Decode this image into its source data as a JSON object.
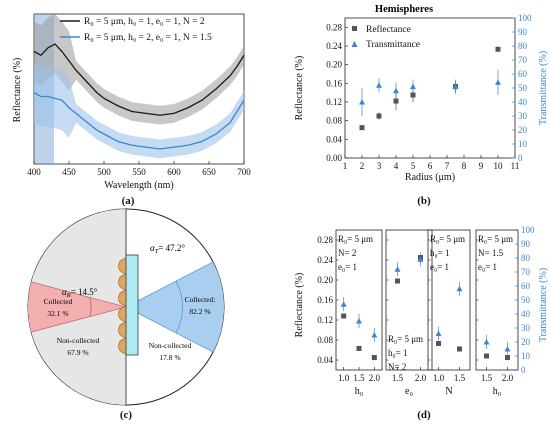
{
  "panels": {
    "a": {
      "caption": "(a)",
      "chart_data": {
        "type": "line",
        "xlabel": "Wavelength (nm)",
        "ylabel": "Reflectance (%)",
        "xlim": [
          400,
          700
        ],
        "xticks": [
          "400",
          "450",
          "500",
          "550",
          "600",
          "650",
          "700"
        ],
        "series": [
          {
            "name": "R₀ = 5 μm, h₀ = 1, e₀ = 1, N = 2",
            "color": "#1a1a1a",
            "x": [
              400,
              410,
              420,
              430,
              440,
              450,
              460,
              470,
              480,
              490,
              500,
              520,
              540,
              560,
              580,
              600,
              620,
              640,
              660,
              680,
              690,
              700
            ],
            "y": [
              0.6,
              0.58,
              0.62,
              0.64,
              0.6,
              0.55,
              0.5,
              0.46,
              0.42,
              0.38,
              0.35,
              0.31,
              0.28,
              0.27,
              0.26,
              0.27,
              0.3,
              0.34,
              0.4,
              0.47,
              0.52,
              0.58
            ]
          },
          {
            "name": "R₀ = 5 μm, h₀ = 2, e₀ = 1, N = 1.5",
            "color": "#3a86d1",
            "x": [
              400,
              410,
              420,
              430,
              440,
              450,
              460,
              470,
              480,
              490,
              500,
              520,
              540,
              560,
              580,
              600,
              620,
              640,
              660,
              680,
              690,
              700
            ],
            "y": [
              0.38,
              0.36,
              0.36,
              0.35,
              0.34,
              0.3,
              0.27,
              0.24,
              0.21,
              0.18,
              0.16,
              0.12,
              0.1,
              0.09,
              0.08,
              0.09,
              0.1,
              0.12,
              0.16,
              0.22,
              0.28,
              0.34
            ]
          }
        ]
      }
    },
    "b": {
      "caption": "(b)",
      "chart_data": {
        "type": "scatter",
        "title": "Hemispheres",
        "xlabel": "Radius (μm)",
        "ylabel": "Reflectance (%)",
        "ylabel2": "Transmittance (%)",
        "xlim": [
          1,
          11
        ],
        "ylim": [
          0,
          0.3
        ],
        "ylim2": [
          0,
          100
        ],
        "xticks": [
          "1",
          "2",
          "3",
          "4",
          "5",
          "6",
          "7",
          "8",
          "9",
          "10",
          "11"
        ],
        "yticks": [
          "0.00",
          "0.04",
          "0.08",
          "0.12",
          "0.16",
          "0.20",
          "0.24",
          "0.28"
        ],
        "y2ticks": [
          "0",
          "10",
          "20",
          "30",
          "40",
          "50",
          "60",
          "70",
          "80",
          "90",
          "100"
        ],
        "series": [
          {
            "name": "Reflectance",
            "marker": "square",
            "color": "#555555",
            "x": [
              2,
              3,
              4,
              5,
              7.5,
              10
            ],
            "y": [
              0.065,
              0.09,
              0.122,
              0.135,
              0.153,
              0.233
            ],
            "err": [
              0.004,
              0.008,
              0.02,
              0.015,
              0.012,
              0.004
            ]
          },
          {
            "name": "Transmittance",
            "marker": "triangle",
            "color": "#3a86d1",
            "axis": "right",
            "x": [
              2,
              3,
              4,
              5,
              7.5,
              10
            ],
            "y": [
              40,
              52,
              48,
              51,
              51,
              54
            ],
            "err": [
              10,
              5,
              6,
              5,
              5,
              9
            ]
          }
        ]
      }
    },
    "c": {
      "caption": "(c)",
      "alpha_r": "α",
      "alpha_r_sub": "R",
      "alpha_r_val": "= 14.5°",
      "alpha_t": "α",
      "alpha_t_sub": "T",
      "alpha_t_val": "= 47.2°",
      "collected_left": "Collected",
      "collected_left_pct": "32.1 %",
      "noncollected_left": "Non-collected",
      "noncollected_left_pct": "67.9 %",
      "collected_right": "Collected:",
      "collected_right_pct": "82.2 %",
      "noncollected_right": "Non-collected",
      "noncollected_right_pct": "17.8 %"
    },
    "d": {
      "caption": "(d)",
      "chart_data": {
        "type": "scatter",
        "ylabel": "Reflectance (%)",
        "ylabel2": "Transmittance (%)",
        "ylim": [
          0.02,
          0.3
        ],
        "ylim2": [
          0,
          100
        ],
        "yticks": [
          "0.04",
          "0.08",
          "0.12",
          "0.16",
          "0.20",
          "0.24",
          "0.28"
        ],
        "y2ticks": [
          "0",
          "10",
          "20",
          "30",
          "40",
          "50",
          "60",
          "70",
          "80",
          "90",
          "100"
        ],
        "subpanels": [
          {
            "xlabel": "h₀",
            "xticks": [
              "1.0",
              "1.5",
              "2.0"
            ],
            "xlim": [
              0.75,
              2.25
            ],
            "params": [
              "R₀= 5 μm",
              "N= 2",
              "e₀= 1"
            ],
            "refl": {
              "x": [
                1.0,
                1.5,
                2.0
              ],
              "y": [
                0.128,
                0.063,
                0.045
              ]
            },
            "trans": {
              "x": [
                1.0,
                1.5,
                2.0
              ],
              "y": [
                47,
                35,
                25
              ]
            }
          },
          {
            "xlabel": "e₀",
            "xticks": [
              "1.5",
              "2.0"
            ],
            "xlim": [
              1.25,
              2.25
            ],
            "params": [
              "R₀= 5 μm",
              "h₀= 1",
              "N= 2"
            ],
            "refl": {
              "x": [
                1.5,
                2.0
              ],
              "y": [
                0.198,
                0.245
              ]
            },
            "trans": {
              "x": [
                1.5,
                2.0
              ],
              "y": [
                72,
                79
              ]
            }
          },
          {
            "xlabel": "N",
            "xticks": [
              "1.0",
              "1.5"
            ],
            "xlim": [
              0.75,
              1.75
            ],
            "params": [
              "R₀= 5 μm",
              "h₀= 1",
              "e₀= 1"
            ],
            "refl": {
              "x": [
                1.0,
                1.5
              ],
              "y": [
                0.073,
                0.062
              ]
            },
            "trans": {
              "x": [
                1.0,
                1.5
              ],
              "y": [
                26,
                58
              ]
            }
          },
          {
            "xlabel": "h₀",
            "xticks": [
              "1.5",
              "2.0"
            ],
            "xlim": [
              1.25,
              2.25
            ],
            "params": [
              "R₀= 5 μm",
              "N= 1.5",
              "e₀= 1"
            ],
            "refl": {
              "x": [
                1.5,
                2.0
              ],
              "y": [
                0.048,
                0.045
              ]
            },
            "trans": {
              "x": [
                1.5,
                2.0
              ],
              "y": [
                20,
                15
              ]
            }
          }
        ]
      }
    }
  }
}
